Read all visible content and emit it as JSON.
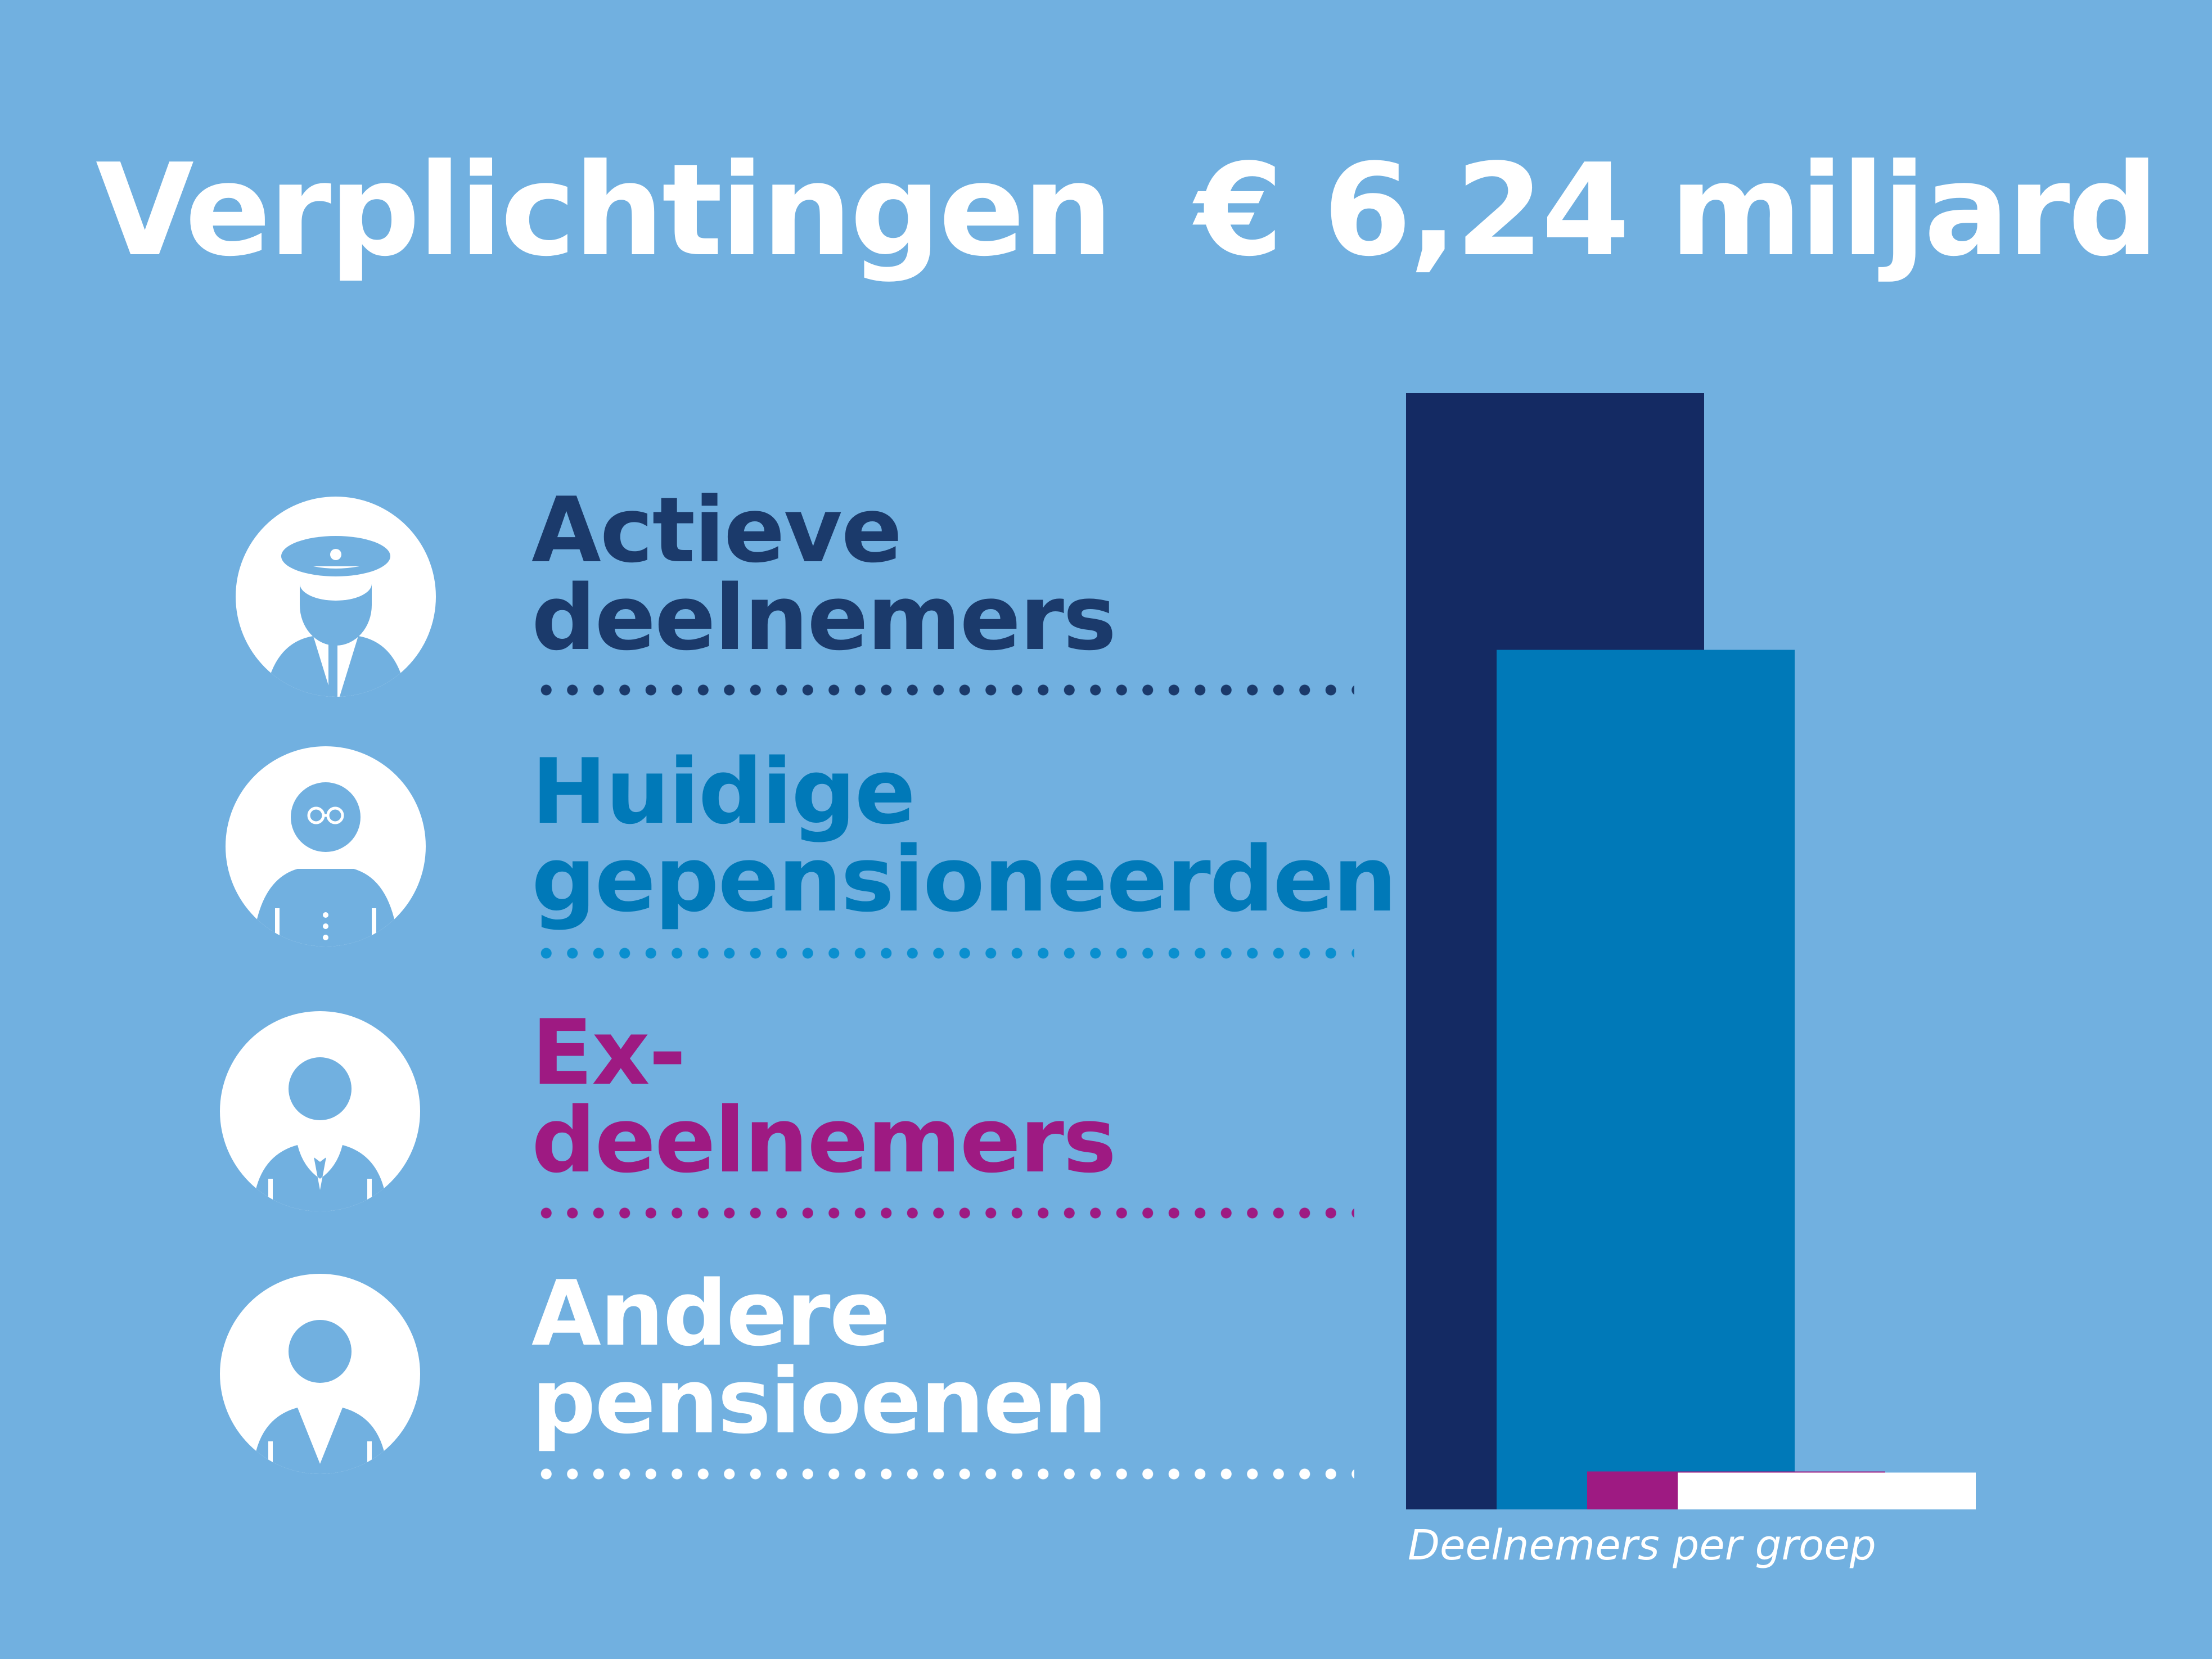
{
  "title": "Verplichtingen  € 6,24 miljard",
  "colors": {
    "background": "#71b0e0",
    "actieve": "#142a63",
    "huidige": "#0079b8",
    "ex": "#9e1a82",
    "andere": "#ffffff"
  },
  "groups": [
    {
      "line1": "Actieve",
      "line2": "deelnemers",
      "color": "#1b3a6b",
      "dot_color": "#1b3a6b",
      "icon": "pilot-icon"
    },
    {
      "line1": "Huidige",
      "line2": "gepensioneerden",
      "color": "#0079b8",
      "dot_color": "#0a8fcf",
      "icon": "retiree-glasses-icon"
    },
    {
      "line1": "Ex-",
      "line2": "deelnemers",
      "color": "#9e1a82",
      "dot_color": "#9e1a82",
      "icon": "person-tie-icon"
    },
    {
      "line1": "Andere",
      "line2": "pensioenen",
      "color": "#ffffff",
      "dot_color": "#ffffff",
      "icon": "person-icon"
    }
  ],
  "chart_data": {
    "type": "bar",
    "layout": "overlapping",
    "title": "",
    "xlabel": "Deelnemers per groep",
    "ylabel": "",
    "categories": [
      "Actieve deelnemers",
      "Huidige gepensioneerden",
      "Ex-deelnemers",
      "Andere pensioenen"
    ],
    "values": [
      100,
      77,
      3.4,
      3.3
    ],
    "colors": [
      "#142a63",
      "#0079b8",
      "#9e1a82",
      "#ffffff"
    ],
    "grid": false,
    "axis_ticks": false
  }
}
